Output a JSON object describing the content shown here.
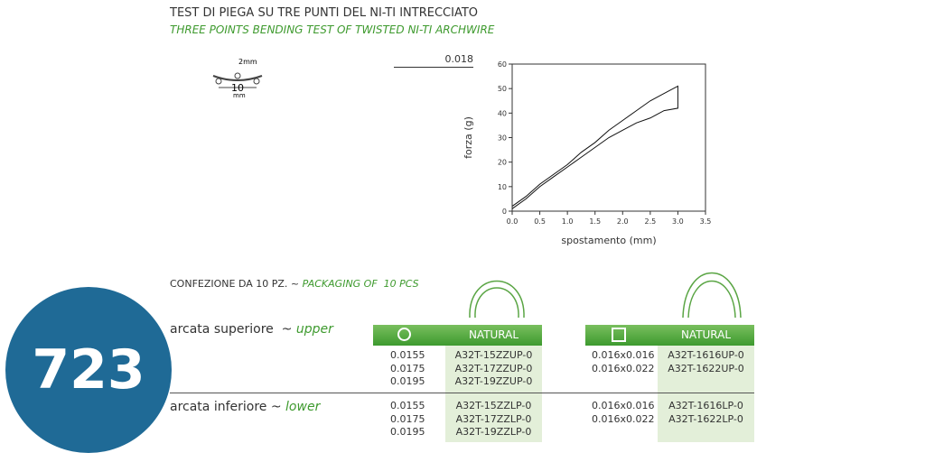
{
  "header": {
    "title": "TEST DI PIEGA SU TRE PUNTI DEL NI-TI INTRECCIATO",
    "subtitle": "THREE POINTS BENDING TEST OF TWISTED NI-TI ARCHWIRE"
  },
  "diagram": {
    "deflection_label": "2mm",
    "span_label": "10",
    "span_unit": "mm"
  },
  "wire_size": "0.018",
  "chart": {
    "type": "line",
    "x_label": "spostamento (mm)",
    "y_label": "forza (g)",
    "color": "#111111",
    "x": [
      0,
      0.25,
      0.5,
      0.75,
      1.0,
      1.25,
      1.5,
      1.75,
      2.0,
      2.25,
      2.5,
      2.75,
      3.0,
      3.0,
      2.75,
      2.5,
      2.25,
      2.0,
      1.75,
      1.5,
      1.25,
      1.0,
      0.75,
      0.5,
      0.25,
      0
    ],
    "values": [
      2,
      6,
      11,
      15,
      19,
      24,
      28,
      33,
      37,
      41,
      45,
      48,
      51,
      42,
      41,
      38,
      36,
      33,
      30,
      26,
      22,
      18,
      14,
      10,
      5,
      1
    ],
    "xlim": [
      0,
      3.5
    ],
    "ylim": [
      0,
      60
    ],
    "xticks": [
      {
        "value": 0,
        "label": "0.0"
      },
      0.5,
      {
        "value": 1,
        "label": "1.0"
      },
      1.5,
      {
        "value": 2,
        "label": "2.0"
      },
      2.5,
      {
        "value": 3,
        "label": "3.0"
      },
      3.5
    ],
    "yticks": [
      0,
      10,
      20,
      30,
      40,
      50,
      60
    ]
  },
  "packaging": {
    "label": "CONFEZIONE DA 10 PZ. ~",
    "label_en": "PACKAGING OF  10 PCS"
  },
  "arches": [
    {
      "label": "arcata superiore  ~",
      "label_en": "upper"
    },
    {
      "label": "arcata inferiore ~",
      "label_en": "lower"
    }
  ],
  "tables": [
    {
      "header": "NATURAL",
      "upper": [
        [
          "0.0155",
          "A32T-15ZZUP-0"
        ],
        [
          "0.0175",
          "A32T-17ZZUP-0"
        ],
        [
          "0.0195",
          "A32T-19ZZUP-0"
        ]
      ],
      "lower": [
        [
          "0.0155",
          "A32T-15ZZLP-0"
        ],
        [
          "0.0175",
          "A32T-17ZZLP-0"
        ],
        [
          "0.0195",
          "A32T-19ZZLP-0"
        ]
      ]
    },
    {
      "header": "NATURAL",
      "upper": [
        [
          "0.016x0.016",
          "A32T-1616UP-0"
        ],
        [
          "0.016x0.022",
          "A32T-1622UP-0"
        ]
      ],
      "lower": [
        [
          "0.016x0.016",
          "A32T-1616LP-0"
        ],
        [
          "0.016x0.022",
          "A32T-1622LP-0"
        ]
      ]
    }
  ],
  "badge": "723"
}
